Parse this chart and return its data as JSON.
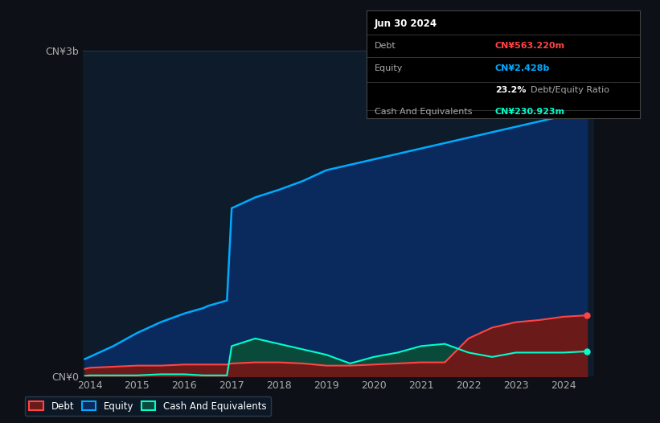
{
  "bg_color": "#0d1117",
  "plot_bg_color": "#0d1b2a",
  "grid_color": "#1e3a5f",
  "xlabel_color": "#aaaaaa",
  "ylabel_color": "#aaaaaa",
  "debt_color": "#ff4444",
  "equity_color": "#00aaff",
  "cash_color": "#00ffcc",
  "debt_fill": "#6b1a1a",
  "equity_fill": "#0a2a5e",
  "cash_fill": "#0a4a3a",
  "annotation_box_bg": "#000000",
  "annotation_box_border": "#333333",
  "years": [
    2013.9,
    2014.0,
    2014.5,
    2015.0,
    2015.5,
    2016.0,
    2016.4,
    2016.5,
    2016.9,
    2017.0,
    2017.5,
    2018.0,
    2018.5,
    2019.0,
    2019.5,
    2020.0,
    2020.5,
    2021.0,
    2021.5,
    2022.0,
    2022.5,
    2023.0,
    2023.5,
    2024.0,
    2024.5
  ],
  "debt": [
    0.07,
    0.08,
    0.09,
    0.1,
    0.1,
    0.11,
    0.11,
    0.11,
    0.11,
    0.12,
    0.13,
    0.13,
    0.12,
    0.1,
    0.1,
    0.11,
    0.12,
    0.13,
    0.13,
    0.35,
    0.45,
    0.5,
    0.52,
    0.55,
    0.563
  ],
  "equity": [
    0.16,
    0.18,
    0.28,
    0.4,
    0.5,
    0.58,
    0.63,
    0.65,
    0.7,
    1.55,
    1.65,
    1.72,
    1.8,
    1.9,
    1.95,
    2.0,
    2.05,
    2.1,
    2.15,
    2.2,
    2.25,
    2.3,
    2.35,
    2.4,
    2.428
  ],
  "cash": [
    0.005,
    0.01,
    0.01,
    0.01,
    0.02,
    0.02,
    0.01,
    0.01,
    0.01,
    0.28,
    0.35,
    0.3,
    0.25,
    0.2,
    0.12,
    0.18,
    0.22,
    0.28,
    0.3,
    0.22,
    0.18,
    0.22,
    0.22,
    0.22,
    0.231
  ],
  "ylim": [
    0,
    3.0
  ],
  "yticks": [
    0,
    3.0
  ],
  "ytick_labels": [
    "CN¥0",
    "CN¥3b"
  ],
  "xtick_labels": [
    "2014",
    "2015",
    "2016",
    "2017",
    "2018",
    "2019",
    "2020",
    "2021",
    "2022",
    "2023",
    "2024"
  ],
  "xtick_values": [
    2014,
    2015,
    2016,
    2017,
    2018,
    2019,
    2020,
    2021,
    2022,
    2023,
    2024
  ],
  "legend_labels": [
    "Debt",
    "Equity",
    "Cash And Equivalents"
  ],
  "tooltip_date": "Jun 30 2024",
  "tooltip_debt_label": "Debt",
  "tooltip_debt_value": "CN¥563.220m",
  "tooltip_equity_label": "Equity",
  "tooltip_equity_value": "CN¥2.428b",
  "tooltip_ratio": "23.2%",
  "tooltip_ratio_label": "Debt/Equity Ratio",
  "tooltip_cash_label": "Cash And Equivalents",
  "tooltip_cash_value": "CN¥230.923m"
}
